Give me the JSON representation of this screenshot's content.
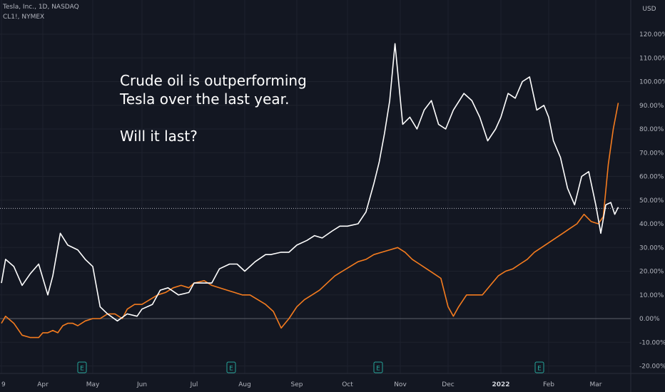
{
  "header": {
    "main_symbol": "Tesla, Inc., 1D, NASDAQ",
    "compare_symbol": "CL1!, NYMEX",
    "currency": "USD"
  },
  "annotation": {
    "line1": "Crude oil is outperforming",
    "line2": "Tesla over the last year.",
    "line3": "",
    "line4": "Will it last?"
  },
  "colors": {
    "background": "#131722",
    "grid": "#1e222d",
    "tesla": "#ffffff",
    "crude": "#f57c1f",
    "axis_text": "#b2b5be",
    "earnings": "#26a69a"
  },
  "chart_data": {
    "type": "line",
    "x_labels": [
      "9",
      "Apr",
      "May",
      "Jun",
      "Jul",
      "Aug",
      "Sep",
      "Oct",
      "Nov",
      "Dec",
      "2022",
      "Feb",
      "Mar"
    ],
    "y_ticks": [
      "120.00%",
      "110.00%",
      "100.00%",
      "90.00%",
      "80.00%",
      "70.00%",
      "60.00%",
      "50.00%",
      "40.00%",
      "30.00%",
      "20.00%",
      "10.00%",
      "0.00%",
      "-10.00%",
      "-20.00%"
    ],
    "ylim": [
      -24,
      126
    ],
    "y_unit": "%",
    "current_level": 46.5,
    "earnings_markers": [
      {
        "label": "E",
        "month_index": 2.0
      },
      {
        "label": "E",
        "month_index": 5.0
      },
      {
        "label": "E",
        "month_index": 8.0
      },
      {
        "label": "E",
        "month_index": 11.0
      }
    ],
    "series": [
      {
        "name": "Tesla, Inc.",
        "color": "#ffffff",
        "points": [
          [
            0.0,
            15
          ],
          [
            0.1,
            25
          ],
          [
            0.3,
            22
          ],
          [
            0.5,
            14
          ],
          [
            0.7,
            19
          ],
          [
            0.9,
            23
          ],
          [
            1.1,
            10
          ],
          [
            1.2,
            18
          ],
          [
            1.35,
            36
          ],
          [
            1.5,
            31
          ],
          [
            1.7,
            29
          ],
          [
            1.85,
            25
          ],
          [
            2.0,
            22
          ],
          [
            2.15,
            5
          ],
          [
            2.3,
            2
          ],
          [
            2.5,
            -1
          ],
          [
            2.7,
            2
          ],
          [
            2.9,
            1
          ],
          [
            3.0,
            4
          ],
          [
            3.2,
            6
          ],
          [
            3.35,
            12
          ],
          [
            3.5,
            13
          ],
          [
            3.7,
            10
          ],
          [
            3.9,
            11
          ],
          [
            4.0,
            15
          ],
          [
            4.2,
            15
          ],
          [
            4.35,
            15
          ],
          [
            4.5,
            21
          ],
          [
            4.7,
            23
          ],
          [
            4.85,
            23
          ],
          [
            5.0,
            20
          ],
          [
            5.2,
            24
          ],
          [
            5.4,
            27
          ],
          [
            5.5,
            27
          ],
          [
            5.7,
            28
          ],
          [
            5.85,
            28
          ],
          [
            6.0,
            31
          ],
          [
            6.2,
            33
          ],
          [
            6.35,
            35
          ],
          [
            6.5,
            34
          ],
          [
            6.7,
            37
          ],
          [
            6.85,
            39
          ],
          [
            7.0,
            39
          ],
          [
            7.2,
            40
          ],
          [
            7.35,
            45
          ],
          [
            7.5,
            57
          ],
          [
            7.6,
            66
          ],
          [
            7.7,
            78
          ],
          [
            7.8,
            92
          ],
          [
            7.9,
            116
          ],
          [
            8.05,
            82
          ],
          [
            8.2,
            85
          ],
          [
            8.35,
            80
          ],
          [
            8.5,
            88
          ],
          [
            8.65,
            92
          ],
          [
            8.8,
            82
          ],
          [
            8.95,
            80
          ],
          [
            9.1,
            88
          ],
          [
            9.3,
            95
          ],
          [
            9.45,
            92
          ],
          [
            9.6,
            85
          ],
          [
            9.75,
            75
          ],
          [
            9.9,
            80
          ],
          [
            10.0,
            85
          ],
          [
            10.15,
            95
          ],
          [
            10.3,
            93
          ],
          [
            10.45,
            100
          ],
          [
            10.6,
            102
          ],
          [
            10.75,
            88
          ],
          [
            10.9,
            90
          ],
          [
            11.0,
            85
          ],
          [
            11.1,
            75
          ],
          [
            11.25,
            68
          ],
          [
            11.4,
            55
          ],
          [
            11.55,
            48
          ],
          [
            11.7,
            60
          ],
          [
            11.85,
            62
          ],
          [
            12.0,
            48
          ],
          [
            12.1,
            36
          ],
          [
            12.2,
            48
          ],
          [
            12.3,
            49
          ],
          [
            12.38,
            44
          ],
          [
            12.45,
            47
          ]
        ]
      },
      {
        "name": "CL1!, NYMEX",
        "color": "#f57c1f",
        "points": [
          [
            0.0,
            -2
          ],
          [
            0.1,
            1
          ],
          [
            0.3,
            -2
          ],
          [
            0.5,
            -7
          ],
          [
            0.7,
            -8
          ],
          [
            0.9,
            -8
          ],
          [
            1.0,
            -6
          ],
          [
            1.1,
            -6
          ],
          [
            1.2,
            -5
          ],
          [
            1.3,
            -6
          ],
          [
            1.4,
            -3
          ],
          [
            1.5,
            -2
          ],
          [
            1.6,
            -2
          ],
          [
            1.7,
            -3
          ],
          [
            1.85,
            -1
          ],
          [
            2.0,
            0
          ],
          [
            2.15,
            0
          ],
          [
            2.3,
            2
          ],
          [
            2.45,
            2
          ],
          [
            2.6,
            0
          ],
          [
            2.7,
            4
          ],
          [
            2.85,
            6
          ],
          [
            3.0,
            6
          ],
          [
            3.15,
            8
          ],
          [
            3.3,
            10
          ],
          [
            3.45,
            11
          ],
          [
            3.6,
            13
          ],
          [
            3.75,
            14
          ],
          [
            3.9,
            13
          ],
          [
            4.0,
            15
          ],
          [
            4.2,
            16
          ],
          [
            4.35,
            14
          ],
          [
            4.5,
            13
          ],
          [
            4.65,
            12
          ],
          [
            4.8,
            11
          ],
          [
            4.95,
            10
          ],
          [
            5.1,
            10
          ],
          [
            5.25,
            8
          ],
          [
            5.4,
            6
          ],
          [
            5.55,
            3
          ],
          [
            5.7,
            -4
          ],
          [
            5.85,
            0
          ],
          [
            6.0,
            5
          ],
          [
            6.15,
            8
          ],
          [
            6.3,
            10
          ],
          [
            6.45,
            12
          ],
          [
            6.6,
            15
          ],
          [
            6.75,
            18
          ],
          [
            6.9,
            20
          ],
          [
            7.05,
            22
          ],
          [
            7.2,
            24
          ],
          [
            7.35,
            25
          ],
          [
            7.5,
            27
          ],
          [
            7.65,
            28
          ],
          [
            7.8,
            29
          ],
          [
            7.95,
            30
          ],
          [
            8.1,
            28
          ],
          [
            8.25,
            25
          ],
          [
            8.4,
            23
          ],
          [
            8.55,
            21
          ],
          [
            8.7,
            19
          ],
          [
            8.85,
            17
          ],
          [
            9.0,
            5
          ],
          [
            9.1,
            1
          ],
          [
            9.2,
            5
          ],
          [
            9.35,
            10
          ],
          [
            9.5,
            10
          ],
          [
            9.65,
            10
          ],
          [
            9.8,
            14
          ],
          [
            9.95,
            18
          ],
          [
            10.1,
            20
          ],
          [
            10.25,
            21
          ],
          [
            10.4,
            23
          ],
          [
            10.55,
            25
          ],
          [
            10.7,
            28
          ],
          [
            10.85,
            30
          ],
          [
            11.0,
            32
          ],
          [
            11.15,
            34
          ],
          [
            11.3,
            36
          ],
          [
            11.45,
            38
          ],
          [
            11.6,
            40
          ],
          [
            11.75,
            44
          ],
          [
            11.9,
            41
          ],
          [
            12.05,
            40
          ],
          [
            12.15,
            43
          ],
          [
            12.25,
            65
          ],
          [
            12.35,
            80
          ],
          [
            12.45,
            91
          ]
        ]
      }
    ]
  }
}
